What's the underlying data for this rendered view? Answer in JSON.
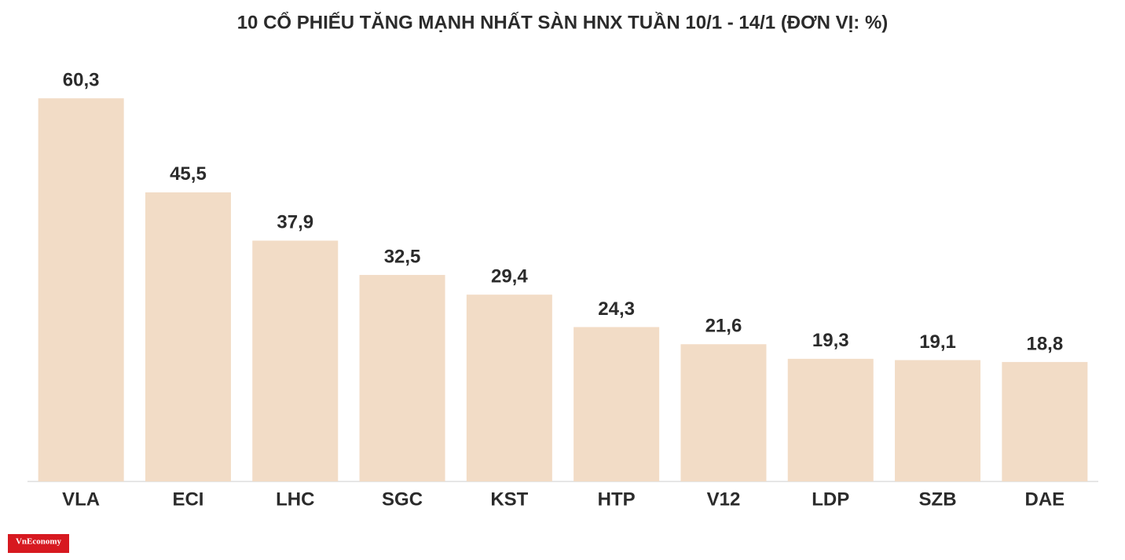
{
  "chart_data": {
    "type": "bar",
    "title": "10 CỔ PHIẾU TĂNG MẠNH NHẤT SÀN HNX TUẦN 10/1 - 14/1 (ĐƠN VỊ: %)",
    "categories": [
      "VLA",
      "ECI",
      "LHC",
      "SGC",
      "KST",
      "HTP",
      "V12",
      "LDP",
      "SZB",
      "DAE"
    ],
    "values": [
      60.3,
      45.5,
      37.9,
      32.5,
      29.4,
      24.3,
      21.6,
      19.3,
      19.1,
      18.8
    ],
    "value_labels": [
      "60,3",
      "45,5",
      "37,9",
      "32,5",
      "29,4",
      "24,3",
      "21,6",
      "19,3",
      "19,1",
      "18,8"
    ],
    "color": "#f2dcc6"
  },
  "logo": "VnEconomy"
}
